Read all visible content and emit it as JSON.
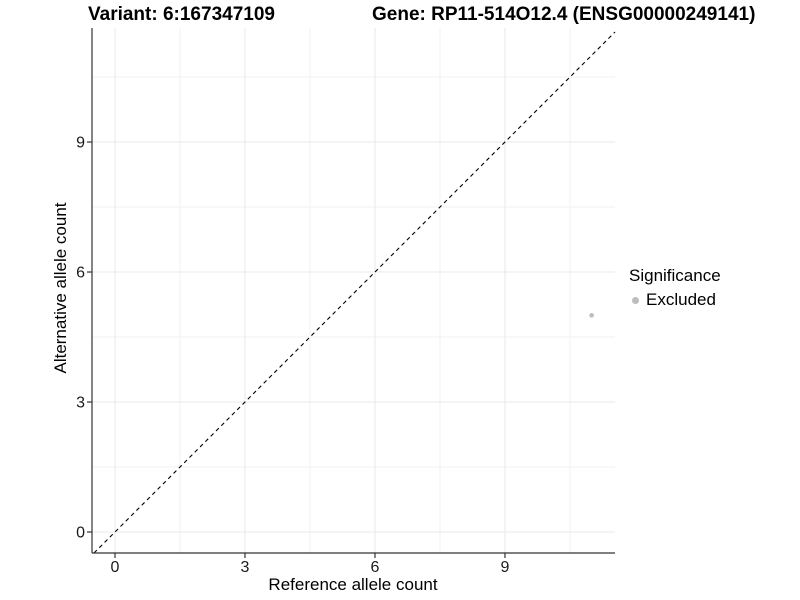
{
  "titles": {
    "variant": "Variant: 6:167347109",
    "gene": "Gene: RP11-514O12.4 (ENSG00000249141)"
  },
  "chart_data": {
    "type": "scatter",
    "xlabel": "Reference allele count",
    "ylabel": "Alternative allele count",
    "x_ticks": [
      0,
      3,
      6,
      9
    ],
    "y_ticks": [
      0,
      3,
      6,
      9
    ],
    "x_minor_ticks": [
      1.5,
      4.5,
      7.5,
      10.5
    ],
    "y_minor_ticks": [
      1.5,
      4.5,
      7.5,
      10.5
    ],
    "xlim": [
      -0.53,
      11.54
    ],
    "ylim": [
      -0.48,
      11.63
    ],
    "grid": true,
    "identity_line": {
      "style": "dashed",
      "color": "#000000",
      "slope": 1,
      "intercept": 0
    },
    "points": [
      {
        "x": 11,
        "y": 5,
        "series": "Excluded",
        "color": "#bdbdbd"
      }
    ],
    "legend": {
      "title": "Significance",
      "position": "right",
      "items": [
        {
          "label": "Excluded",
          "color": "#bdbdbd"
        }
      ]
    },
    "colors": {
      "grid_major": "#e8e8e8",
      "grid_minor": "#f2f2f2",
      "axis_line": "#333333",
      "tick_text": "#1a1a1a"
    }
  }
}
